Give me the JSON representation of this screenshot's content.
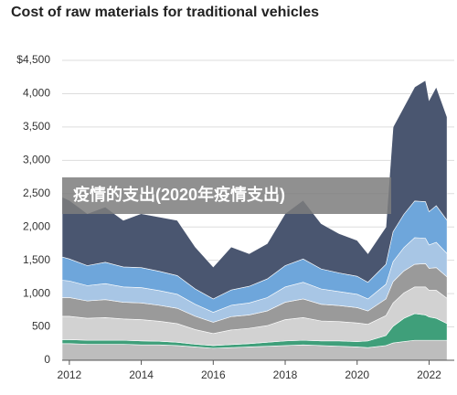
{
  "chart_data": {
    "type": "stacked_area",
    "title": "Cost of raw materials for traditional vehicles",
    "annotations": [
      "疫情的支出(2020年疫情支出)"
    ],
    "x": [
      2011.8,
      2012,
      2012.5,
      2013,
      2013.5,
      2014,
      2014.5,
      2015,
      2015.5,
      2016,
      2016.5,
      2017,
      2017.5,
      2018,
      2018.5,
      2019,
      2019.5,
      2020,
      2020.3,
      2020.8,
      2021,
      2021.3,
      2021.6,
      2021.9,
      2022,
      2022.2,
      2022.5
    ],
    "series": [
      {
        "color": "#bdbdbd",
        "values": [
          250,
          250,
          240,
          240,
          240,
          230,
          230,
          220,
          200,
          180,
          190,
          200,
          210,
          220,
          230,
          220,
          210,
          200,
          190,
          220,
          260,
          280,
          300,
          300,
          300,
          300,
          300
        ]
      },
      {
        "color": "#3f9f7a",
        "values": [
          60,
          60,
          60,
          60,
          60,
          60,
          55,
          50,
          40,
          40,
          45,
          50,
          60,
          70,
          70,
          70,
          80,
          80,
          100,
          150,
          250,
          350,
          400,
          380,
          350,
          330,
          250
        ]
      },
      {
        "color": "#d2d2d2",
        "values": [
          350,
          350,
          330,
          340,
          320,
          320,
          300,
          280,
          220,
          180,
          220,
          230,
          250,
          320,
          340,
          300,
          290,
          280,
          250,
          300,
          350,
          380,
          400,
          420,
          400,
          420,
          380
        ]
      },
      {
        "color": "#9a9a9a",
        "values": [
          280,
          280,
          260,
          270,
          250,
          250,
          240,
          230,
          200,
          170,
          200,
          200,
          220,
          260,
          280,
          250,
          240,
          230,
          200,
          250,
          320,
          330,
          340,
          350,
          330,
          340,
          320
        ]
      },
      {
        "color": "#a8c6e5",
        "values": [
          260,
          250,
          230,
          240,
          230,
          230,
          220,
          210,
          180,
          150,
          170,
          180,
          200,
          230,
          250,
          230,
          210,
          200,
          180,
          220,
          300,
          350,
          400,
          380,
          350,
          380,
          350
        ]
      },
      {
        "color": "#6ea6db",
        "values": [
          350,
          330,
          300,
          320,
          300,
          300,
          290,
          280,
          230,
          200,
          230,
          250,
          280,
          320,
          350,
          300,
          280,
          270,
          250,
          300,
          450,
          500,
          550,
          550,
          500,
          550,
          500
        ]
      },
      {
        "color": "#4a5670",
        "values": [
          900,
          880,
          780,
          830,
          700,
          810,
          815,
          830,
          630,
          480,
          645,
          490,
          530,
          780,
          880,
          680,
          590,
          540,
          430,
          560,
          1570,
          1610,
          1710,
          1820,
          1670,
          1780,
          1550
        ]
      }
    ],
    "xlim": [
      2011.8,
      2022.7
    ],
    "xticks": [
      2012,
      2014,
      2016,
      2018,
      2020,
      2022
    ],
    "ylim": [
      0,
      4500
    ],
    "yticks": [
      0,
      500,
      {
        "value": 1000,
        "label": "1,000"
      },
      {
        "value": 1500,
        "label": "1,500"
      },
      {
        "value": 2000,
        "label": "2,000"
      },
      {
        "value": 2500,
        "label": "2,500"
      },
      {
        "value": 3000,
        "label": "3,000"
      },
      {
        "value": 3500,
        "label": "3,500"
      },
      {
        "value": 4000,
        "label": "4,000"
      },
      {
        "value": 4500,
        "label": "$4,500"
      }
    ],
    "grid": true
  }
}
